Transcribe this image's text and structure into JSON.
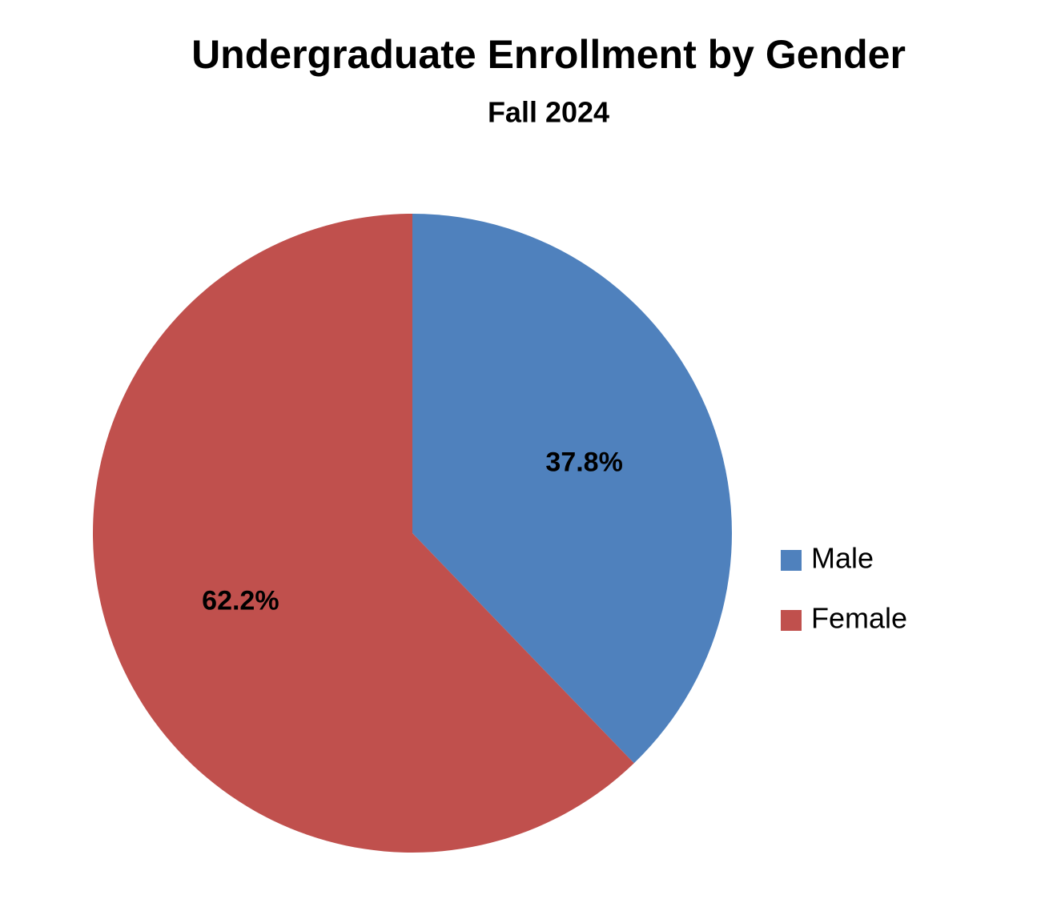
{
  "chart_data": {
    "type": "pie",
    "title": "Undergraduate Enrollment by Gender",
    "subtitle": "Fall 2024",
    "categories": [
      "Male",
      "Female"
    ],
    "values": [
      37.8,
      62.2
    ],
    "value_labels": [
      "37.8%",
      "62.2%"
    ],
    "colors": [
      "#4f81bd",
      "#c0504d"
    ],
    "legend": "right"
  }
}
